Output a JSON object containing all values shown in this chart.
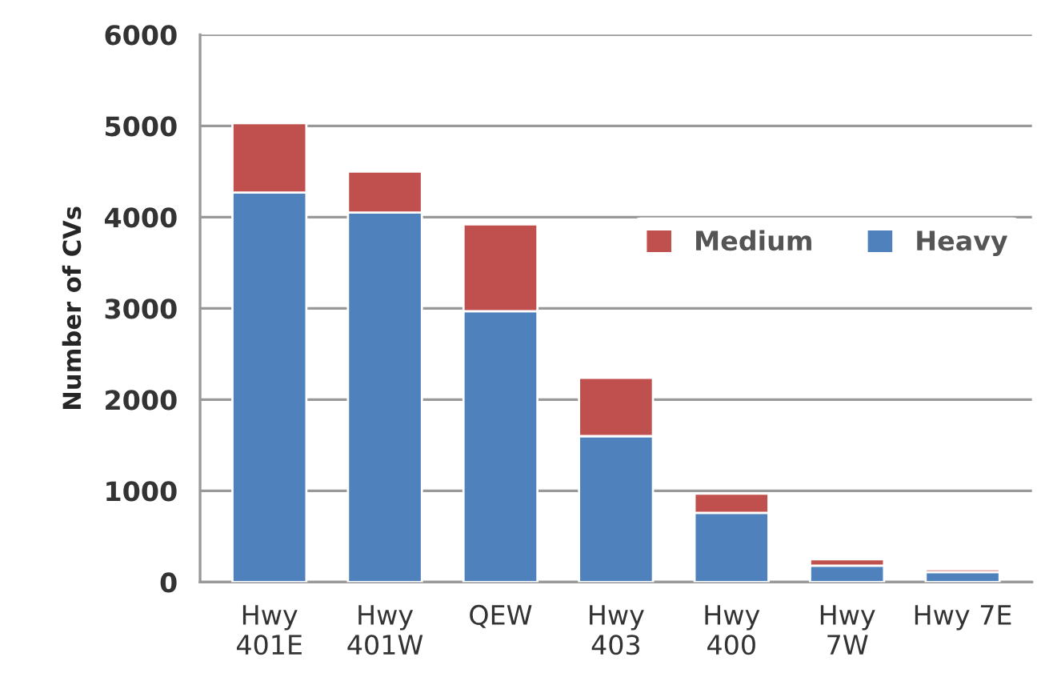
{
  "chart_data": {
    "type": "bar",
    "ylabel": "Number of CVs",
    "categories": [
      "Hwy\n401E",
      "Hwy\n401W",
      "QEW",
      "Hwy\n403",
      "Hwy\n400",
      "Hwy\n7W",
      "Hwy 7E"
    ],
    "stacked": true,
    "series": [
      {
        "name": "Heavy",
        "color": "#4f81bd",
        "values": [
          4270,
          4050,
          2970,
          1600,
          760,
          180,
          110
        ]
      },
      {
        "name": "Medium",
        "color": "#c0504d",
        "values": [
          760,
          450,
          950,
          640,
          210,
          70,
          30
        ]
      }
    ],
    "ylim": [
      0,
      6000
    ],
    "yticks": [
      0,
      1000,
      2000,
      3000,
      4000,
      5000,
      6000
    ],
    "grid": "y",
    "legend": "right"
  }
}
